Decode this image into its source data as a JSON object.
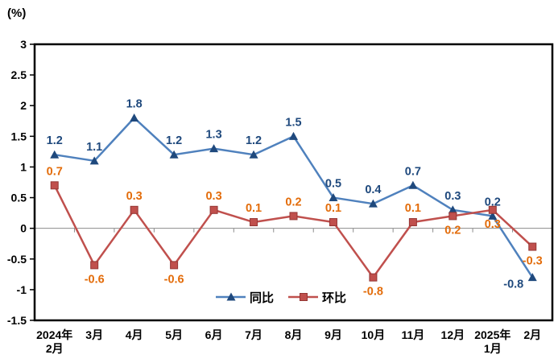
{
  "title": "(%)",
  "chart_data": {
    "type": "line",
    "title": "",
    "xlabel": "",
    "ylabel": "(%)",
    "ylim": [
      -1.5,
      3
    ],
    "yticks": [
      3,
      2.5,
      2,
      1.5,
      1,
      0.5,
      0,
      -0.5,
      -1,
      -1.5
    ],
    "grid": false,
    "zero_line": true,
    "legend_position": "inside-bottom-center",
    "categories": [
      "2024年\n2月",
      "3月",
      "4月",
      "5月",
      "6月",
      "7月",
      "8月",
      "9月",
      "10月",
      "11月",
      "12月",
      "2025年\n1月",
      "2月"
    ],
    "series": [
      {
        "id": "yoy",
        "name": "同比",
        "values": [
          1.2,
          1.1,
          1.8,
          1.2,
          1.3,
          1.2,
          1.5,
          0.5,
          0.4,
          0.7,
          0.3,
          0.2,
          -0.8
        ],
        "line_color": "#4F81BD",
        "marker": "triangle",
        "marker_color": "#1F497D",
        "label_color": "#1F497D",
        "label_pos": [
          "above",
          "above",
          "above",
          "above",
          "above",
          "above",
          "above",
          "above",
          "above",
          "above",
          "above",
          "above",
          "left"
        ]
      },
      {
        "id": "mom",
        "name": "环比",
        "values": [
          0.7,
          -0.6,
          0.3,
          -0.6,
          0.3,
          0.1,
          0.2,
          0.1,
          -0.8,
          0.1,
          0.2,
          0.3,
          -0.3
        ],
        "line_color": "#C0504D",
        "marker": "square",
        "marker_color": "#C0504D",
        "marker_stroke": "#943634",
        "label_color": "#E36C0A",
        "label_pos": [
          "above",
          "below",
          "above",
          "below",
          "above",
          "above",
          "above",
          "above",
          "below",
          "above",
          "below",
          "below",
          "below"
        ]
      }
    ],
    "colors": {
      "axis": "#000000",
      "zero_line": "#8C8C8C",
      "tick_label": "#000000",
      "plot_border": "#000000"
    }
  }
}
